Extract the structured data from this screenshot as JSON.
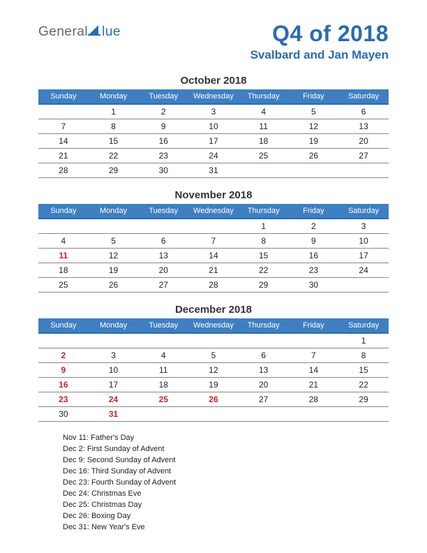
{
  "logo": {
    "text1": "General",
    "text2": "lue",
    "color_gray": "#5a6a78",
    "color_blue": "#2b6bb0"
  },
  "header": {
    "title": "Q4 of 2018",
    "subtitle": "Svalbard and Jan Mayen"
  },
  "day_headers": [
    "Sunday",
    "Monday",
    "Tuesday",
    "Wednesday",
    "Thursday",
    "Friday",
    "Saturday"
  ],
  "colors": {
    "header_bg": "#3f7fc1",
    "header_text": "#ffffff",
    "accent": "#2b6bb0",
    "holiday": "#cc2222",
    "border": "#888888",
    "text": "#222222",
    "background": "#ffffff"
  },
  "months": [
    {
      "title": "October 2018",
      "weeks": [
        [
          {
            "d": ""
          },
          {
            "d": "1"
          },
          {
            "d": "2"
          },
          {
            "d": "3"
          },
          {
            "d": "4"
          },
          {
            "d": "5"
          },
          {
            "d": "6"
          }
        ],
        [
          {
            "d": "7"
          },
          {
            "d": "8"
          },
          {
            "d": "9"
          },
          {
            "d": "10"
          },
          {
            "d": "11"
          },
          {
            "d": "12"
          },
          {
            "d": "13"
          }
        ],
        [
          {
            "d": "14"
          },
          {
            "d": "15"
          },
          {
            "d": "16"
          },
          {
            "d": "17"
          },
          {
            "d": "18"
          },
          {
            "d": "19"
          },
          {
            "d": "20"
          }
        ],
        [
          {
            "d": "21"
          },
          {
            "d": "22"
          },
          {
            "d": "23"
          },
          {
            "d": "24"
          },
          {
            "d": "25"
          },
          {
            "d": "26"
          },
          {
            "d": "27"
          }
        ],
        [
          {
            "d": "28"
          },
          {
            "d": "29"
          },
          {
            "d": "30"
          },
          {
            "d": "31"
          },
          {
            "d": ""
          },
          {
            "d": ""
          },
          {
            "d": ""
          }
        ]
      ]
    },
    {
      "title": "November 2018",
      "weeks": [
        [
          {
            "d": ""
          },
          {
            "d": ""
          },
          {
            "d": ""
          },
          {
            "d": ""
          },
          {
            "d": "1"
          },
          {
            "d": "2"
          },
          {
            "d": "3"
          }
        ],
        [
          {
            "d": "4"
          },
          {
            "d": "5"
          },
          {
            "d": "6"
          },
          {
            "d": "7"
          },
          {
            "d": "8"
          },
          {
            "d": "9"
          },
          {
            "d": "10"
          }
        ],
        [
          {
            "d": "11",
            "h": true
          },
          {
            "d": "12"
          },
          {
            "d": "13"
          },
          {
            "d": "14"
          },
          {
            "d": "15"
          },
          {
            "d": "16"
          },
          {
            "d": "17"
          }
        ],
        [
          {
            "d": "18"
          },
          {
            "d": "19"
          },
          {
            "d": "20"
          },
          {
            "d": "21"
          },
          {
            "d": "22"
          },
          {
            "d": "23"
          },
          {
            "d": "24"
          }
        ],
        [
          {
            "d": "25"
          },
          {
            "d": "26"
          },
          {
            "d": "27"
          },
          {
            "d": "28"
          },
          {
            "d": "29"
          },
          {
            "d": "30"
          },
          {
            "d": ""
          }
        ]
      ]
    },
    {
      "title": "December 2018",
      "weeks": [
        [
          {
            "d": ""
          },
          {
            "d": ""
          },
          {
            "d": ""
          },
          {
            "d": ""
          },
          {
            "d": ""
          },
          {
            "d": ""
          },
          {
            "d": "1"
          }
        ],
        [
          {
            "d": "2",
            "h": true
          },
          {
            "d": "3"
          },
          {
            "d": "4"
          },
          {
            "d": "5"
          },
          {
            "d": "6"
          },
          {
            "d": "7"
          },
          {
            "d": "8"
          }
        ],
        [
          {
            "d": "9",
            "h": true
          },
          {
            "d": "10"
          },
          {
            "d": "11"
          },
          {
            "d": "12"
          },
          {
            "d": "13"
          },
          {
            "d": "14"
          },
          {
            "d": "15"
          }
        ],
        [
          {
            "d": "16",
            "h": true
          },
          {
            "d": "17"
          },
          {
            "d": "18"
          },
          {
            "d": "19"
          },
          {
            "d": "20"
          },
          {
            "d": "21"
          },
          {
            "d": "22"
          }
        ],
        [
          {
            "d": "23",
            "h": true
          },
          {
            "d": "24",
            "h": true
          },
          {
            "d": "25",
            "h": true
          },
          {
            "d": "26",
            "h": true
          },
          {
            "d": "27"
          },
          {
            "d": "28"
          },
          {
            "d": "29"
          }
        ],
        [
          {
            "d": "30"
          },
          {
            "d": "31",
            "h": true
          },
          {
            "d": ""
          },
          {
            "d": ""
          },
          {
            "d": ""
          },
          {
            "d": ""
          },
          {
            "d": ""
          }
        ]
      ]
    }
  ],
  "holidays": [
    "Nov 11: Father's Day",
    "Dec 2: First Sunday of Advent",
    "Dec 9: Second Sunday of Advent",
    "Dec 16: Third Sunday of Advent",
    "Dec 23: Fourth Sunday of Advent",
    "Dec 24: Christmas Eve",
    "Dec 25: Christmas Day",
    "Dec 26: Boxing Day",
    "Dec 31: New Year's Eve"
  ]
}
